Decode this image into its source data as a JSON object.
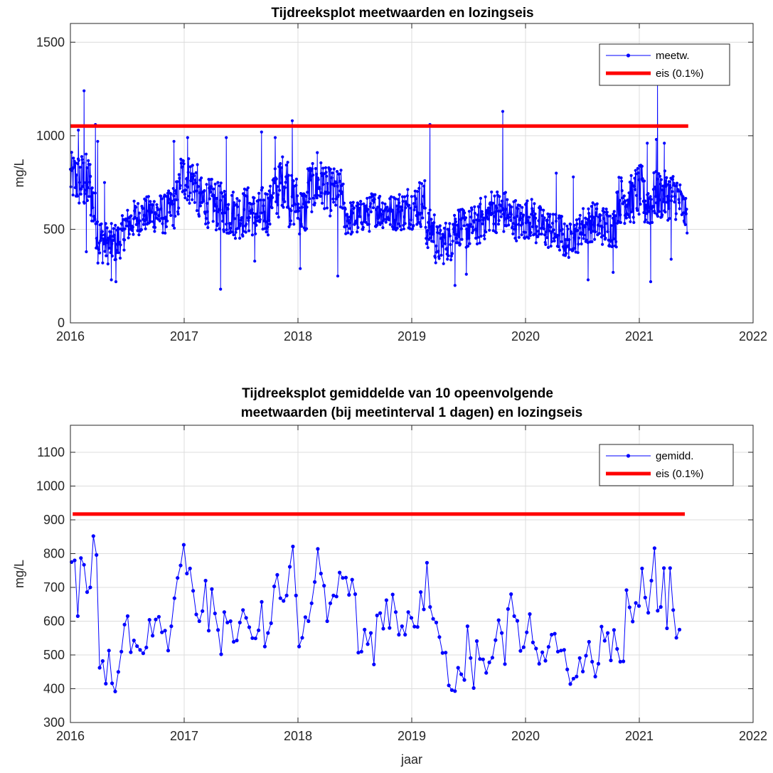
{
  "chart_data": [
    {
      "type": "line",
      "title": "Tijdreeksplot meetwaarden en lozingseis",
      "xlabel": "",
      "ylabel": "mg/L",
      "xlim": [
        2016,
        2022
      ],
      "ylim": [
        0,
        1600
      ],
      "xticks": [
        2016,
        2017,
        2018,
        2019,
        2020,
        2021,
        2022
      ],
      "xtick_labels": [
        "2016",
        "2017",
        "2018",
        "2019",
        "2020",
        "2021",
        "2022"
      ],
      "yticks": [
        0,
        500,
        1000,
        1500
      ],
      "ytick_labels": [
        "0",
        "500",
        "1000",
        "1500"
      ],
      "grid": true,
      "legend_position": "top-right",
      "colors": {
        "series": "#0000ff",
        "limit": "#ff0000"
      },
      "limit": {
        "name": "eis (0.1%)",
        "value": 1052,
        "x_start": 2016.0,
        "x_end": 2021.43
      },
      "series": [
        {
          "name": "meetw.",
          "marker": "dot",
          "x_start": 2016.0,
          "x_end": 2021.42,
          "sampling": "daily measurements, values shown at ~monthly resolution as level ± spread",
          "x": [
            2016.0,
            2016.08,
            2016.17,
            2016.25,
            2016.33,
            2016.42,
            2016.5,
            2016.58,
            2016.67,
            2016.75,
            2016.83,
            2016.92,
            2017.0,
            2017.08,
            2017.17,
            2017.25,
            2017.33,
            2017.42,
            2017.5,
            2017.58,
            2017.67,
            2017.75,
            2017.83,
            2017.92,
            2018.0,
            2018.08,
            2018.17,
            2018.25,
            2018.33,
            2018.42,
            2018.5,
            2018.58,
            2018.67,
            2018.75,
            2018.83,
            2018.92,
            2019.0,
            2019.08,
            2019.17,
            2019.25,
            2019.33,
            2019.42,
            2019.5,
            2019.58,
            2019.67,
            2019.75,
            2019.83,
            2019.92,
            2020.0,
            2020.08,
            2020.17,
            2020.25,
            2020.33,
            2020.42,
            2020.5,
            2020.58,
            2020.67,
            2020.75,
            2020.83,
            2020.92,
            2021.0,
            2021.08,
            2021.17,
            2021.25,
            2021.33,
            2021.42
          ],
          "level": [
            780,
            760,
            740,
            450,
            420,
            430,
            520,
            560,
            580,
            590,
            580,
            620,
            780,
            760,
            650,
            640,
            620,
            590,
            580,
            600,
            570,
            600,
            700,
            760,
            650,
            600,
            720,
            740,
            700,
            700,
            560,
            560,
            580,
            610,
            600,
            590,
            600,
            620,
            640,
            500,
            420,
            440,
            520,
            500,
            520,
            560,
            600,
            590,
            560,
            540,
            560,
            520,
            500,
            480,
            440,
            470,
            520,
            540,
            520,
            510,
            660,
            660,
            700,
            640,
            680,
            560
          ],
          "spread": [
            110,
            130,
            140,
            110,
            90,
            90,
            80,
            80,
            80,
            90,
            90,
            100,
            110,
            110,
            110,
            110,
            110,
            110,
            110,
            110,
            110,
            110,
            120,
            120,
            120,
            110,
            110,
            110,
            110,
            100,
            80,
            80,
            80,
            80,
            80,
            80,
            90,
            100,
            110,
            90,
            90,
            90,
            90,
            90,
            90,
            100,
            100,
            100,
            90,
            90,
            90,
            90,
            90,
            90,
            80,
            80,
            90,
            90,
            90,
            90,
            110,
            110,
            120,
            110,
            110,
            70
          ],
          "peaks": [
            {
              "x": 2016.07,
              "y": 1030
            },
            {
              "x": 2016.12,
              "y": 1240
            },
            {
              "x": 2016.14,
              "y": 380
            },
            {
              "x": 2016.24,
              "y": 970
            },
            {
              "x": 2016.22,
              "y": 1060
            },
            {
              "x": 2016.4,
              "y": 220
            },
            {
              "x": 2016.36,
              "y": 230
            },
            {
              "x": 2016.3,
              "y": 750
            },
            {
              "x": 2016.91,
              "y": 970
            },
            {
              "x": 2017.03,
              "y": 990
            },
            {
              "x": 2017.32,
              "y": 180
            },
            {
              "x": 2017.37,
              "y": 990
            },
            {
              "x": 2017.62,
              "y": 330
            },
            {
              "x": 2017.68,
              "y": 1020
            },
            {
              "x": 2017.8,
              "y": 990
            },
            {
              "x": 2017.95,
              "y": 1080
            },
            {
              "x": 2018.02,
              "y": 290
            },
            {
              "x": 2018.17,
              "y": 910
            },
            {
              "x": 2018.35,
              "y": 250
            },
            {
              "x": 2019.16,
              "y": 1060
            },
            {
              "x": 2019.38,
              "y": 200
            },
            {
              "x": 2019.48,
              "y": 260
            },
            {
              "x": 2019.8,
              "y": 1130
            },
            {
              "x": 2020.27,
              "y": 800
            },
            {
              "x": 2020.42,
              "y": 780
            },
            {
              "x": 2020.55,
              "y": 230
            },
            {
              "x": 2020.77,
              "y": 270
            },
            {
              "x": 2021.07,
              "y": 960
            },
            {
              "x": 2021.1,
              "y": 220
            },
            {
              "x": 2021.16,
              "y": 1290
            },
            {
              "x": 2021.15,
              "y": 980
            },
            {
              "x": 2021.22,
              "y": 960
            },
            {
              "x": 2021.28,
              "y": 340
            }
          ]
        }
      ]
    },
    {
      "type": "line",
      "title": [
        "Tijdreeksplot gemiddelde van 10 opeenvolgende",
        "meetwaarden (bij meetinterval 1 dagen) en lozingseis"
      ],
      "xlabel": "jaar",
      "ylabel": "mg/L",
      "xlim": [
        2016,
        2022
      ],
      "ylim": [
        300,
        1180
      ],
      "xticks": [
        2016,
        2017,
        2018,
        2019,
        2020,
        2021,
        2022
      ],
      "xtick_labels": [
        "2016",
        "2017",
        "2018",
        "2019",
        "2020",
        "2021",
        "2022"
      ],
      "yticks": [
        300,
        400,
        500,
        600,
        700,
        800,
        900,
        1000,
        1100
      ],
      "ytick_labels": [
        "300",
        "400",
        "500",
        "600",
        "700",
        "800",
        "900",
        "1000",
        "1100"
      ],
      "grid": true,
      "legend_position": "top-right",
      "colors": {
        "series": "#0000ff",
        "limit": "#ff0000"
      },
      "limit": {
        "name": "eis (0.1%)",
        "value": 917,
        "x_start": 2016.02,
        "x_end": 2021.4
      },
      "series": [
        {
          "name": "gemidd.",
          "marker": "dot",
          "x_start": 2016.01,
          "x_step": 0.0274,
          "values": [
            775,
            780,
            615,
            787,
            767,
            686,
            700,
            852,
            796,
            462,
            482,
            415,
            513,
            416,
            392,
            450,
            510,
            590,
            615,
            508,
            543,
            526,
            515,
            505,
            522,
            604,
            557,
            605,
            613,
            567,
            572,
            513,
            585,
            668,
            728,
            765,
            826,
            741,
            756,
            690,
            620,
            600,
            630,
            720,
            572,
            695,
            623,
            574,
            502,
            627,
            596,
            600,
            539,
            543,
            596,
            633,
            610,
            582,
            550,
            549,
            573,
            657,
            525,
            565,
            594,
            703,
            737,
            668,
            660,
            676,
            761,
            821,
            676,
            525,
            551,
            612,
            600,
            653,
            716,
            814,
            741,
            705,
            600,
            653,
            676,
            673,
            744,
            728,
            729,
            678,
            723,
            680,
            507,
            510,
            575,
            532,
            565,
            472,
            617,
            624,
            578,
            662,
            580,
            679,
            627,
            560,
            585,
            560,
            627,
            610,
            584,
            583,
            686,
            635,
            773,
            642,
            607,
            596,
            553,
            506,
            507,
            410,
            396,
            393,
            462,
            443,
            426,
            585,
            491,
            402,
            541,
            488,
            487,
            447,
            478,
            492,
            544,
            603,
            565,
            473,
            636,
            680,
            615,
            601,
            512,
            523,
            567,
            621,
            537,
            519,
            474,
            508,
            483,
            524,
            560,
            563,
            510,
            513,
            515,
            457,
            414,
            430,
            436,
            491,
            451,
            498,
            539,
            480,
            436,
            474,
            584,
            542,
            565,
            484,
            574,
            518,
            480,
            481,
            692,
            641,
            599,
            654,
            645,
            756,
            670,
            625,
            720,
            816,
            631,
            642,
            757,
            579,
            757,
            633,
            551,
            575
          ]
        }
      ]
    }
  ]
}
